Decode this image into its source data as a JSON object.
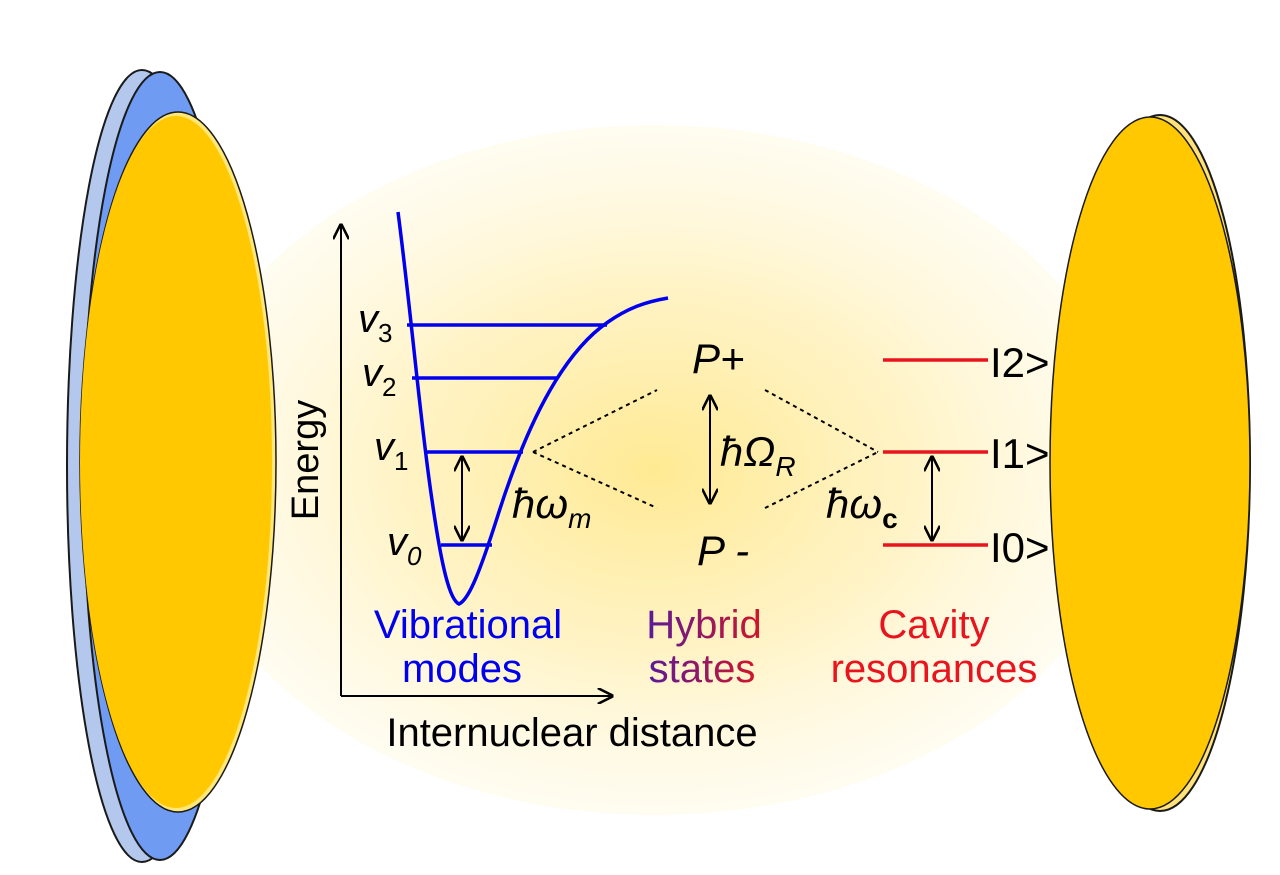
{
  "axes": {
    "y_label": "Energy",
    "x_label": "Internuclear distance"
  },
  "vibrational": {
    "levels": [
      {
        "label": "v",
        "sub": "0"
      },
      {
        "label": "v",
        "sub": "1"
      },
      {
        "label": "v",
        "sub": "2"
      },
      {
        "label": "v",
        "sub": "3"
      }
    ],
    "transition_label": "ħω",
    "transition_sub": "m",
    "caption_line1": "Vibrational",
    "caption_line2": "modes",
    "color": "#0000ee"
  },
  "hybrid": {
    "upper_label": "P+",
    "lower_label": "P -",
    "splitting_label": "ħΩ",
    "splitting_sub": "R",
    "caption_line1": "Hybrid",
    "caption_line2": "states",
    "gradient_start": "#1010b0",
    "gradient_end": "#e8141e"
  },
  "cavity": {
    "levels": [
      "I0>",
      "I1>",
      "I2>"
    ],
    "transition_label": "ħω",
    "transition_sub": "c",
    "caption_line1": "Cavity",
    "caption_line2": "resonances",
    "color": "#e8141e"
  },
  "colors": {
    "mirror_gold": "#ffc800",
    "mirror_blue": "#7aa8f5",
    "glow": "#fff1b8"
  }
}
